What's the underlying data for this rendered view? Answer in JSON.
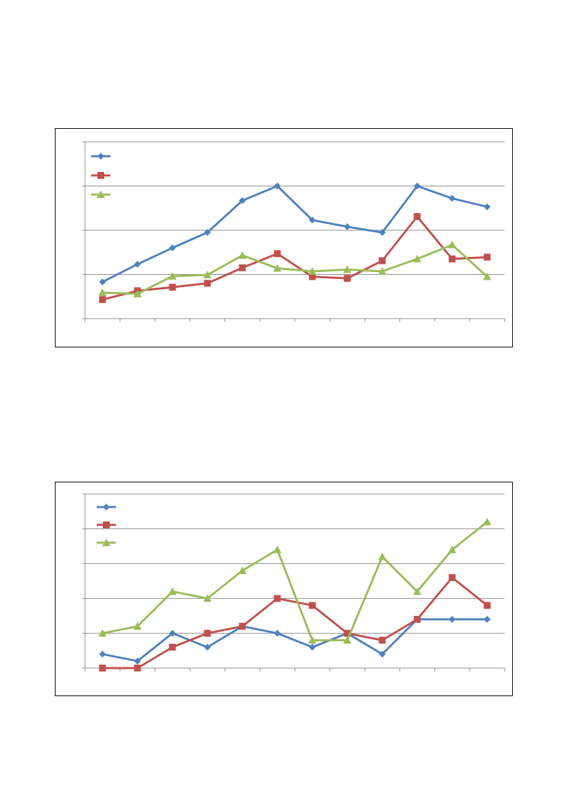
{
  "chart_data": [
    {
      "type": "line",
      "categories": [
        "",
        "",
        "",
        "",
        "",
        "",
        "",
        "",
        "",
        "",
        "",
        ""
      ],
      "ylim": [
        0,
        4
      ],
      "grid": true,
      "legend": "top-left",
      "series": [
        {
          "color": "#4F81BD",
          "marker": "diamond",
          "values": [
            0.83,
            1.23,
            1.6,
            1.95,
            2.67,
            3.0,
            2.23,
            2.08,
            1.95,
            3.0,
            2.72,
            2.53
          ]
        },
        {
          "color": "#C0504D",
          "marker": "square",
          "values": [
            0.43,
            0.63,
            0.71,
            0.8,
            1.15,
            1.47,
            0.95,
            0.91,
            1.31,
            2.31,
            1.35,
            1.39
          ]
        },
        {
          "color": "#9BBB59",
          "marker": "triangle",
          "values": [
            0.59,
            0.56,
            0.96,
            0.99,
            1.43,
            1.14,
            1.07,
            1.11,
            1.07,
            1.35,
            1.67,
            0.95
          ]
        }
      ]
    },
    {
      "type": "line",
      "categories": [
        "",
        "",
        "",
        "",
        "",
        "",
        "",
        "",
        "",
        "",
        "",
        ""
      ],
      "ylim": [
        0,
        5
      ],
      "grid": true,
      "legend": "top-left",
      "series": [
        {
          "color": "#4F81BD",
          "marker": "diamond",
          "values": [
            0.4,
            0.2,
            1.0,
            0.6,
            1.2,
            1.0,
            0.6,
            1.0,
            0.4,
            1.4,
            1.4,
            1.4
          ]
        },
        {
          "color": "#C0504D",
          "marker": "square",
          "values": [
            0.0,
            0.0,
            0.6,
            1.0,
            1.2,
            2.0,
            1.8,
            1.0,
            0.8,
            1.4,
            2.6,
            1.8
          ]
        },
        {
          "color": "#9BBB59",
          "marker": "triangle",
          "values": [
            1.0,
            1.2,
            2.2,
            2.0,
            2.8,
            3.4,
            0.8,
            0.8,
            3.2,
            2.2,
            3.4,
            4.2
          ]
        }
      ]
    }
  ]
}
